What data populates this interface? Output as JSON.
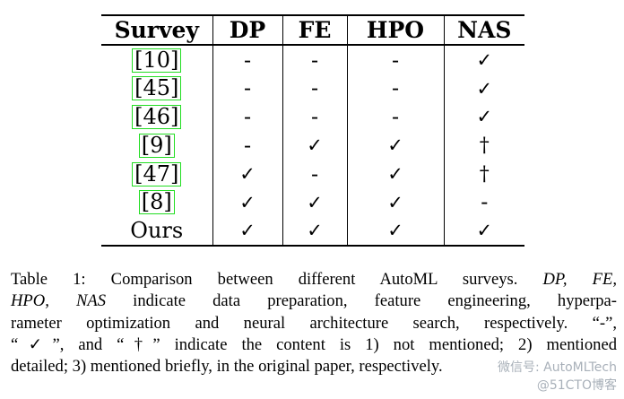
{
  "table": {
    "headers": [
      "Survey",
      "DP",
      "FE",
      "HPO",
      "NAS"
    ],
    "rows": [
      {
        "survey": "[10]",
        "cite": true,
        "cells": [
          "-",
          "-",
          "-",
          "✓"
        ]
      },
      {
        "survey": "[45]",
        "cite": true,
        "cells": [
          "-",
          "-",
          "-",
          "✓"
        ]
      },
      {
        "survey": "[46]",
        "cite": true,
        "cells": [
          "-",
          "-",
          "-",
          "✓"
        ]
      },
      {
        "survey": "[9]",
        "cite": true,
        "cells": [
          "-",
          "✓",
          "✓",
          "†"
        ]
      },
      {
        "survey": "[47]",
        "cite": true,
        "cells": [
          "✓",
          "-",
          "✓",
          "†"
        ]
      },
      {
        "survey": "[8]",
        "cite": true,
        "cells": [
          "✓",
          "✓",
          "✓",
          "-"
        ]
      },
      {
        "survey": "Ours",
        "cite": false,
        "cells": [
          "✓",
          "✓",
          "✓",
          "✓"
        ]
      }
    ]
  },
  "caption": {
    "line1_a": "Table 1: Comparison between different AutoML surveys. ",
    "line1_b": "DP, FE,",
    "line2_a": "HPO, NAS",
    "line2_b": " indicate data preparation, feature engineering, hyperpa-",
    "line3": "rameter optimization and neural architecture search, respectively. “-”,",
    "line4": "“✓”, and “†” indicate the content is 1) not mentioned; 2) mentioned",
    "line5": "detailed; 3) mentioned briefly, in the original paper, respectively."
  },
  "watermark": {
    "line1": "微信号: AutoMLTech",
    "line2": "@51CTO博客"
  }
}
